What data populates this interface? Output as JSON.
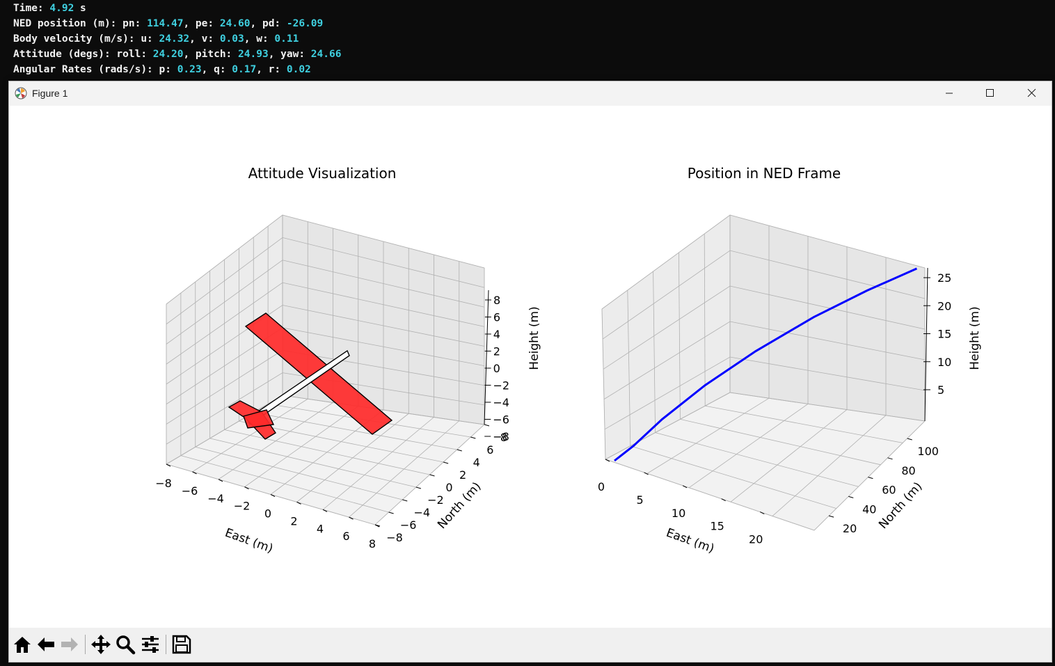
{
  "console": {
    "lines": [
      [
        {
          "t": "Time: "
        },
        {
          "t": "4.92",
          "v": true
        },
        {
          "t": " s"
        }
      ],
      [
        {
          "t": "NED position (m): pn: "
        },
        {
          "t": "114.47",
          "v": true
        },
        {
          "t": ", pe: "
        },
        {
          "t": "24.60",
          "v": true
        },
        {
          "t": ", pd: "
        },
        {
          "t": "-26.09",
          "v": true
        }
      ],
      [
        {
          "t": "Body velocity (m/s): u: "
        },
        {
          "t": "24.32",
          "v": true
        },
        {
          "t": ", v: "
        },
        {
          "t": "0.03",
          "v": true
        },
        {
          "t": ", w: "
        },
        {
          "t": "0.11",
          "v": true
        }
      ],
      [
        {
          "t": "Attitude (degs): roll: "
        },
        {
          "t": "24.20",
          "v": true
        },
        {
          "t": ", pitch: "
        },
        {
          "t": "24.93",
          "v": true
        },
        {
          "t": ", yaw: "
        },
        {
          "t": "24.66",
          "v": true
        }
      ],
      [
        {
          "t": "Angular Rates (rads/s): p: "
        },
        {
          "t": "0.23",
          "v": true
        },
        {
          "t": ", q: "
        },
        {
          "t": "0.17",
          "v": true
        },
        {
          "t": ", r: "
        },
        {
          "t": "0.02",
          "v": true
        }
      ]
    ]
  },
  "window": {
    "title": "Figure 1",
    "minimize_icon": "minimize-icon",
    "maximize_icon": "maximize-icon",
    "close_icon": "close-icon"
  },
  "toolbar": {
    "buttons": [
      "home-icon",
      "back-arrow-icon",
      "forward-arrow-icon",
      "pan-move-icon",
      "zoom-magnifier-icon",
      "configure-subplots-icon",
      "save-floppy-icon"
    ]
  },
  "colors": {
    "console_value": "#3fd0e0",
    "aircraft_fill": "#ff2a2a",
    "trajectory": "#0000ff"
  },
  "chart_data": [
    {
      "type": "3d-polygons",
      "title": "Attitude Visualization",
      "xlabel": "East (m)",
      "ylabel": "North (m)",
      "zlabel": "Height (m)",
      "x_ticks": [
        "−8",
        "−6",
        "−4",
        "−2",
        "0",
        "2",
        "4",
        "6",
        "8"
      ],
      "y_ticks": [
        "−8",
        "−6",
        "−4",
        "−2",
        "0",
        "2",
        "4",
        "6",
        "8"
      ],
      "z_ticks": [
        "8",
        "6",
        "4",
        "2",
        "0",
        "−2",
        "−4",
        "−6",
        "−8"
      ],
      "xlim": [
        -8,
        8
      ],
      "ylim": [
        -8,
        8
      ],
      "zlim": [
        -8,
        8
      ],
      "grid": true,
      "attitude_degs": {
        "roll": 24.2,
        "pitch": 24.93,
        "yaw": 24.66
      }
    },
    {
      "type": "3d-line",
      "title": "Position in NED Frame",
      "xlabel": "East (m)",
      "ylabel": "North (m)",
      "zlabel": "Height (m)",
      "x_ticks": [
        "0",
        "5",
        "10",
        "15",
        "20"
      ],
      "y_ticks": [
        "20",
        "40",
        "60",
        "80",
        "100"
      ],
      "z_ticks": [
        "25",
        "20",
        "15",
        "10",
        "5"
      ],
      "grid": true,
      "series": [
        {
          "x": [
            0,
            1.2,
            3,
            6,
            10,
            15,
            20,
            24.6
          ],
          "y": [
            0,
            10,
            25,
            45,
            65,
            85,
            100,
            114.47
          ],
          "z": [
            0,
            1.5,
            4.5,
            8.5,
            13,
            18,
            22.5,
            26.09
          ]
        }
      ]
    }
  ]
}
